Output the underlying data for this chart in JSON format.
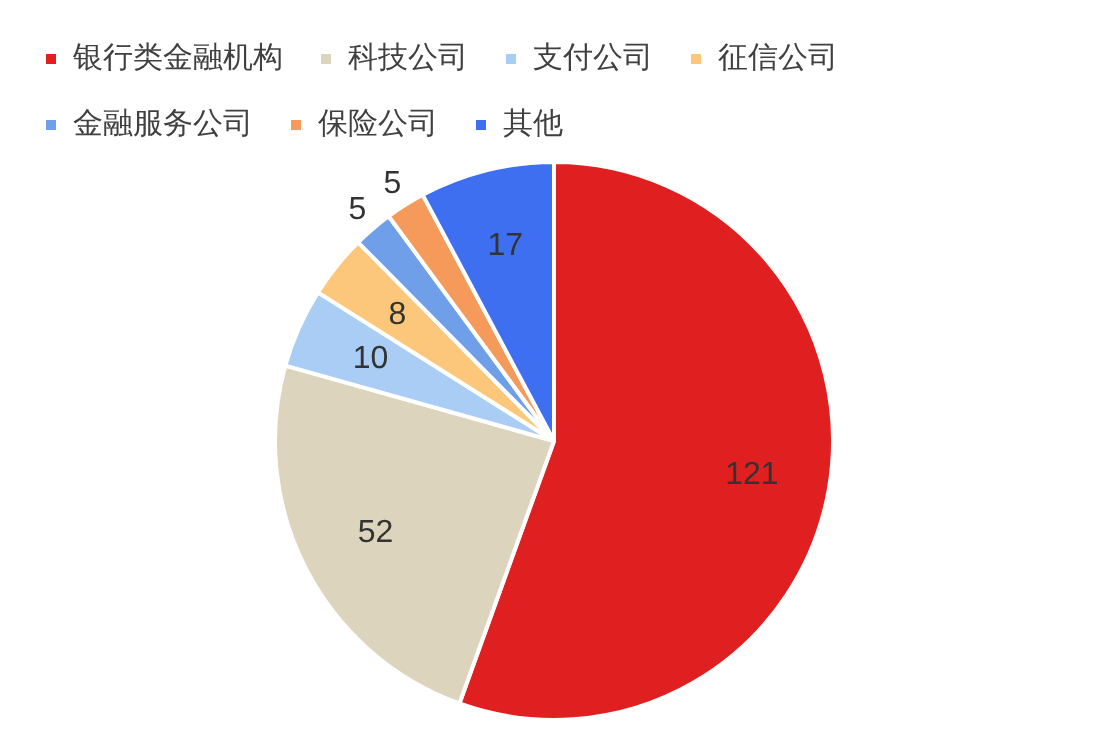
{
  "chart_data": {
    "type": "pie",
    "categories": [
      "银行类金融机构",
      "科技公司",
      "支付公司",
      "征信公司",
      "金融服务公司",
      "保险公司",
      "其他"
    ],
    "values": [
      121,
      52,
      10,
      8,
      5,
      5,
      17
    ],
    "colors": [
      "#e02020",
      "#ddd4bd",
      "#a9cdf5",
      "#fcc77a",
      "#6f9fe8",
      "#f59a5a",
      "#3d6ff0"
    ],
    "data_labels": true,
    "legend": "top"
  }
}
